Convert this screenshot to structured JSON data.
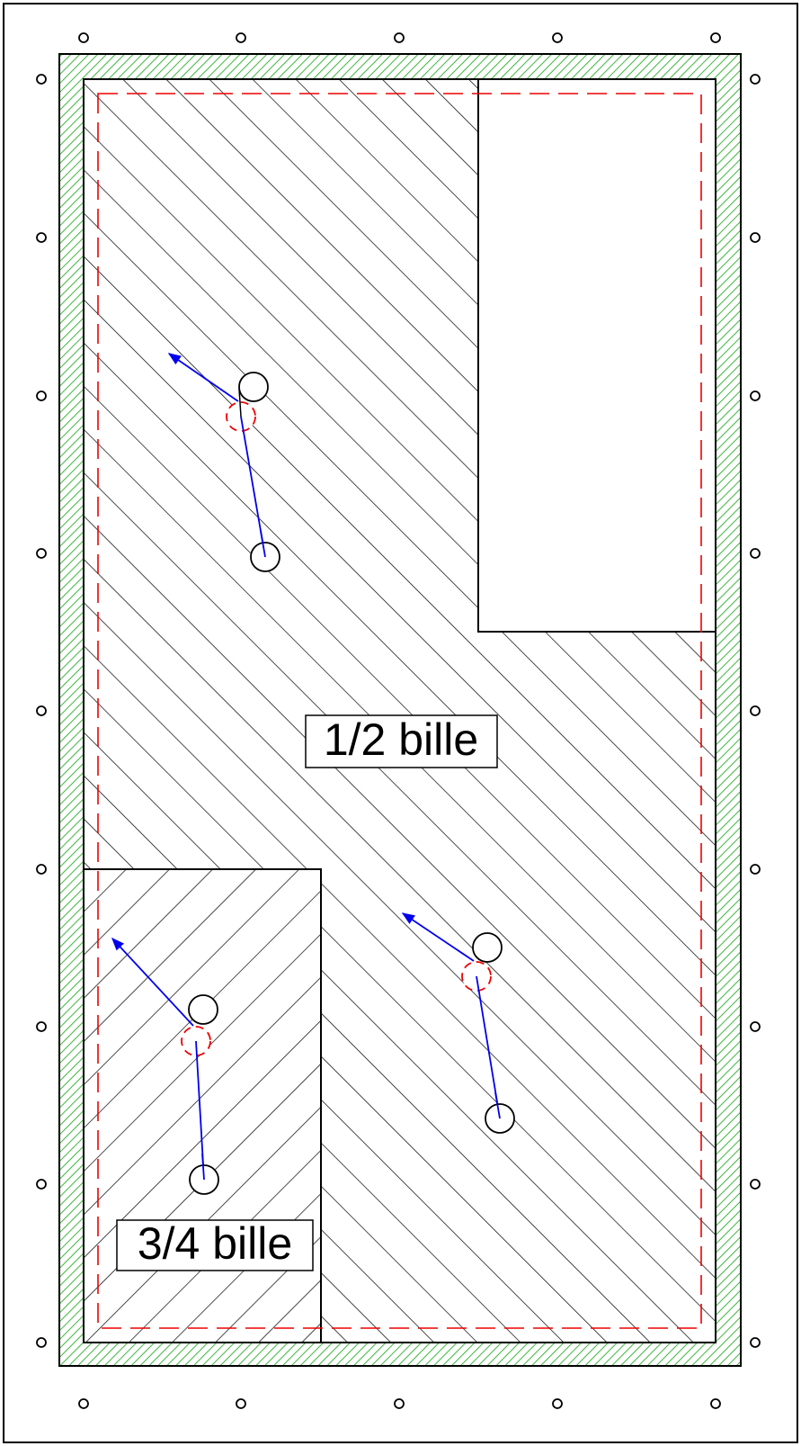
{
  "labels": {
    "half": "1/2 bille",
    "three_quarter": "3/4 bille"
  }
}
